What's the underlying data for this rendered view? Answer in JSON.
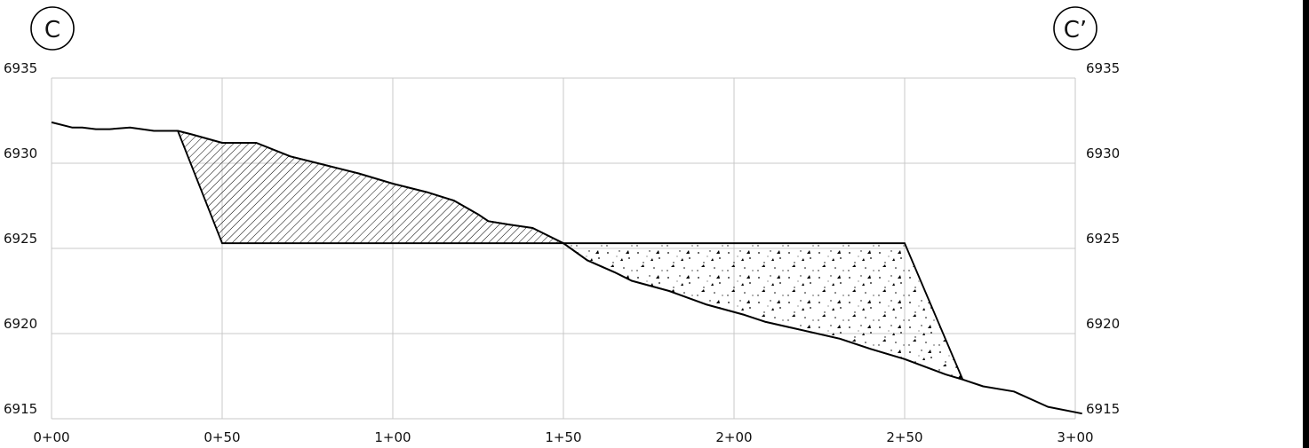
{
  "section": {
    "start_marker": "C",
    "end_marker": "C’"
  },
  "chart_data": {
    "type": "line",
    "title": "",
    "xlabel": "",
    "ylabel": "",
    "xlim": [
      0,
      300
    ],
    "ylim": [
      6915,
      6935
    ],
    "grid": true,
    "x_ticks": [
      {
        "value": 0,
        "label": "0+00"
      },
      {
        "value": 50,
        "label": "0+50"
      },
      {
        "value": 100,
        "label": "1+00"
      },
      {
        "value": 150,
        "label": "1+50"
      },
      {
        "value": 200,
        "label": "2+00"
      },
      {
        "value": 250,
        "label": "2+50"
      },
      {
        "value": 300,
        "label": "3+00"
      }
    ],
    "y_ticks": [
      {
        "value": 6935,
        "label": "6935"
      },
      {
        "value": 6930,
        "label": "6930"
      },
      {
        "value": 6925,
        "label": "6925"
      },
      {
        "value": 6920,
        "label": "6920"
      },
      {
        "value": 6915,
        "label": "6915"
      }
    ],
    "ground_profile": {
      "x": [
        0,
        6,
        9,
        13,
        17,
        23,
        30,
        37,
        41,
        50,
        60,
        70,
        80,
        90,
        100,
        110,
        118,
        125,
        128,
        134,
        141,
        150,
        157,
        165,
        170,
        181,
        192,
        203,
        209,
        220,
        231,
        240,
        250,
        262,
        267,
        273,
        282,
        292,
        302
      ],
      "y": [
        6932.4,
        6932.1,
        6932.1,
        6932.0,
        6932.0,
        6932.1,
        6931.9,
        6931.9,
        6931.7,
        6931.2,
        6931.2,
        6930.4,
        6929.9,
        6929.4,
        6928.8,
        6928.3,
        6927.8,
        6927.0,
        6926.6,
        6926.4,
        6926.2,
        6925.3,
        6924.3,
        6923.6,
        6923.1,
        6922.5,
        6921.7,
        6921.1,
        6920.7,
        6920.2,
        6919.7,
        6919.1,
        6918.5,
        6917.6,
        6917.3,
        6916.9,
        6916.6,
        6915.7,
        6915.3
      ]
    },
    "cut_region": {
      "fill": "hatch",
      "polygon": [
        [
          37,
          6931.9
        ],
        [
          41,
          6931.7
        ],
        [
          50,
          6931.2
        ],
        [
          60,
          6931.2
        ],
        [
          70,
          6930.4
        ],
        [
          80,
          6929.9
        ],
        [
          90,
          6929.4
        ],
        [
          100,
          6928.8
        ],
        [
          110,
          6928.3
        ],
        [
          118,
          6927.8
        ],
        [
          125,
          6927.0
        ],
        [
          128,
          6926.6
        ],
        [
          134,
          6926.4
        ],
        [
          141,
          6926.2
        ],
        [
          150,
          6925.3
        ],
        [
          50,
          6925.3
        ]
      ]
    },
    "fill_region": {
      "fill": "stipple",
      "polygon": [
        [
          150,
          6925.3
        ],
        [
          250,
          6925.3
        ],
        [
          267,
          6917.3
        ],
        [
          262,
          6917.6
        ],
        [
          250,
          6918.5
        ],
        [
          240,
          6919.1
        ],
        [
          231,
          6919.7
        ],
        [
          220,
          6920.2
        ],
        [
          209,
          6920.7
        ],
        [
          203,
          6921.1
        ],
        [
          192,
          6921.7
        ],
        [
          181,
          6922.5
        ],
        [
          170,
          6923.1
        ],
        [
          165,
          6923.6
        ],
        [
          157,
          6924.3
        ]
      ]
    },
    "design_grade": {
      "x": [
        37,
        50,
        250,
        267
      ],
      "y": [
        6931.9,
        6925.3,
        6925.3,
        6917.3
      ]
    }
  }
}
